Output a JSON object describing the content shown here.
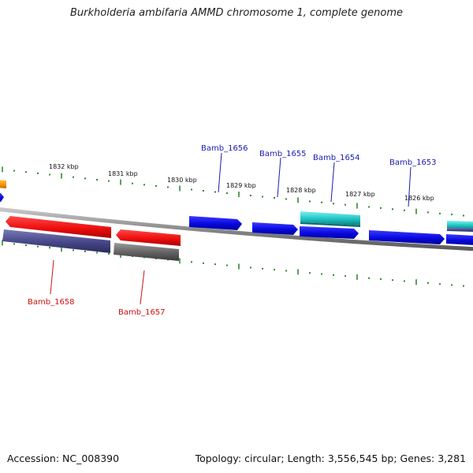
{
  "title": "Burkholderia ambifaria AMMD chromosome 1, complete genome",
  "footer": {
    "accession": "Accession: NC_008390",
    "summary": "Topology: circular; Length: 3,556,545 bp; Genes: 3,281"
  },
  "kbp_labels": [
    "1832 kbp",
    "1831 kbp",
    "1830 kbp",
    "1829 kbp",
    "1828 kbp",
    "1827 kbp",
    "1826 kbp"
  ],
  "gene_labels": {
    "bamb_1656": "Bamb_1656",
    "bamb_1655": "Bamb_1655",
    "bamb_1654": "Bamb_1654",
    "bamb_1653": "Bamb_1653",
    "bamb_1658": "Bamb_1658",
    "bamb_1657": "Bamb_1657"
  },
  "colors": {
    "forward_gene_label": "#1a1ab0",
    "reverse_gene_label": "#cc1111",
    "tick": "#2e8b2e",
    "backbone": "#8a8a8a",
    "gene_blue": "#0a0ae6",
    "gene_red": "#ee1111",
    "gene_cyan": "#22c8c8",
    "gene_slate": "#4a4a8c",
    "gene_gray": "#666666",
    "gene_orange": "#ff9900"
  }
}
